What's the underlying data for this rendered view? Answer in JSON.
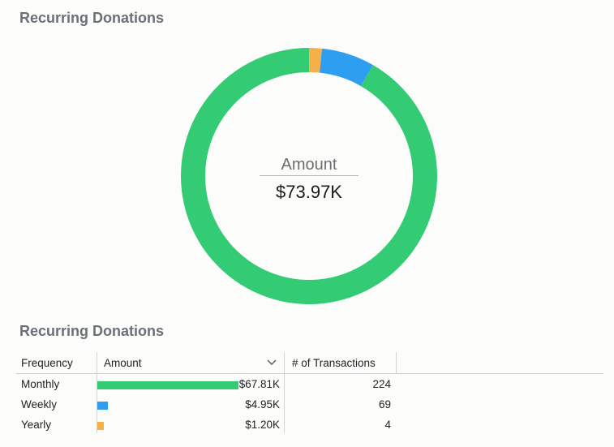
{
  "titles": {
    "donut": "Recurring Donations",
    "table": "Recurring Donations"
  },
  "donut_center": {
    "label": "Amount",
    "value": "$73.97K"
  },
  "table": {
    "columns": [
      "Frequency",
      "Amount",
      "# of Transactions"
    ],
    "rows": [
      {
        "frequency": "Monthly",
        "amount_text": "$67.81K",
        "amount": 67.81,
        "transactions": "224",
        "color": "#33cc74"
      },
      {
        "frequency": "Weekly",
        "amount_text": "$4.95K",
        "amount": 4.95,
        "transactions": "69",
        "color": "#2d9ef0"
      },
      {
        "frequency": "Yearly",
        "amount_text": "$1.20K",
        "amount": 1.2,
        "transactions": "4",
        "color": "#f5b04a"
      }
    ]
  },
  "chart_data": {
    "type": "pie",
    "variant": "donut",
    "title": "Recurring Donations",
    "categories": [
      "Monthly",
      "Weekly",
      "Yearly"
    ],
    "values": [
      67.81,
      4.95,
      1.2
    ],
    "unit": "$K",
    "colors": [
      "#33cc74",
      "#2d9ef0",
      "#f5b04a"
    ]
  }
}
